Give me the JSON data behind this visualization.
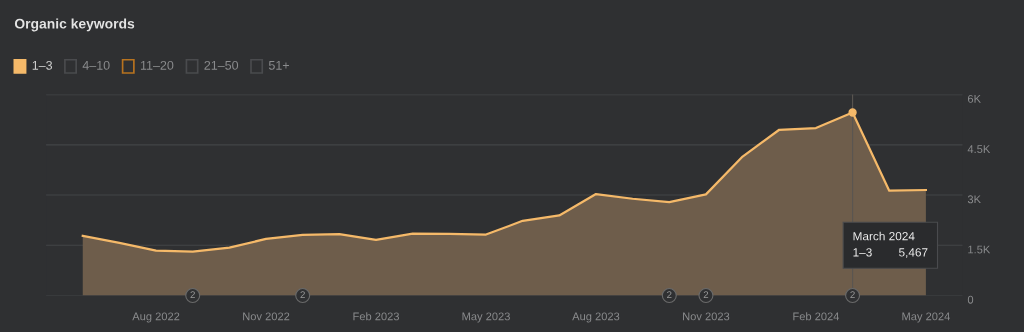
{
  "chart_data": {
    "type": "area",
    "title": "Organic keywords",
    "x": [
      "2022-06",
      "2022-07",
      "2022-08",
      "2022-09",
      "2022-10",
      "2022-11",
      "2022-12",
      "2023-01",
      "2023-02",
      "2023-03",
      "2023-04",
      "2023-05",
      "2023-06",
      "2023-07",
      "2023-08",
      "2023-09",
      "2023-10",
      "2023-11",
      "2023-12",
      "2024-01",
      "2024-02",
      "2024-03",
      "2024-04",
      "2024-05"
    ],
    "series": [
      {
        "name": "1–3",
        "color": "#f5b969",
        "values": [
          1780,
          1570,
          1340,
          1310,
          1430,
          1690,
          1810,
          1830,
          1660,
          1850,
          1840,
          1820,
          2230,
          2390,
          3030,
          2890,
          2790,
          3020,
          4150,
          4950,
          5000,
          5467,
          3130,
          3150
        ]
      },
      {
        "name": "4–10",
        "color": "#4a4b4e",
        "values": [
          null,
          null,
          null,
          null,
          null,
          null,
          null,
          null,
          null,
          null,
          null,
          null,
          null,
          null,
          null,
          null,
          null,
          null,
          null,
          null,
          null,
          null,
          null,
          null
        ]
      },
      {
        "name": "11–20",
        "color": "#b8731f",
        "values": [
          null,
          null,
          null,
          null,
          null,
          null,
          null,
          null,
          null,
          null,
          null,
          null,
          null,
          null,
          null,
          null,
          null,
          null,
          null,
          null,
          null,
          null,
          null,
          null
        ]
      },
      {
        "name": "21–50",
        "color": "#4a4b4e",
        "values": [
          null,
          null,
          null,
          null,
          null,
          null,
          null,
          null,
          null,
          null,
          null,
          null,
          null,
          null,
          null,
          null,
          null,
          null,
          null,
          null,
          null,
          null,
          null,
          null
        ]
      },
      {
        "name": "51+",
        "color": "#4a4b4e",
        "values": [
          null,
          null,
          null,
          null,
          null,
          null,
          null,
          null,
          null,
          null,
          null,
          null,
          null,
          null,
          null,
          null,
          null,
          null,
          null,
          null,
          null,
          null,
          null,
          null
        ]
      }
    ],
    "xlim": [
      "2022-05",
      "2024-06"
    ],
    "xticks": [
      {
        "value": "2022-08",
        "label": "Aug 2022"
      },
      {
        "value": "2022-11",
        "label": "Nov 2022"
      },
      {
        "value": "2023-02",
        "label": "Feb 2023"
      },
      {
        "value": "2023-05",
        "label": "May 2023"
      },
      {
        "value": "2023-08",
        "label": "Aug 2023"
      },
      {
        "value": "2023-11",
        "label": "Nov 2023"
      },
      {
        "value": "2024-02",
        "label": "Feb 2024"
      },
      {
        "value": "2024-05",
        "label": "May 2024"
      }
    ],
    "ylim": [
      0,
      6000
    ],
    "yticks": [
      0,
      {
        "value": 1500,
        "label": "1.5K"
      },
      {
        "value": 3000,
        "label": "3K"
      },
      {
        "value": 4500,
        "label": "4.5K"
      },
      {
        "value": 6000,
        "label": "6K"
      }
    ],
    "grid": "y",
    "legend": "top left",
    "ref_lines": [
      {
        "axis": "x",
        "value": "2024-03",
        "label": null
      }
    ],
    "annotations": [
      "March 2024\n1–3        5,467",
      {
        "text": "2",
        "x": "2022-09",
        "y": 0
      },
      {
        "text": "2",
        "x": "2022-12",
        "y": 0
      },
      {
        "text": "2",
        "x": "2023-10",
        "y": 0
      },
      {
        "text": "2",
        "x": "2023-11",
        "y": 0
      },
      {
        "text": "2",
        "x": "2024-03",
        "y": 0
      }
    ]
  }
}
